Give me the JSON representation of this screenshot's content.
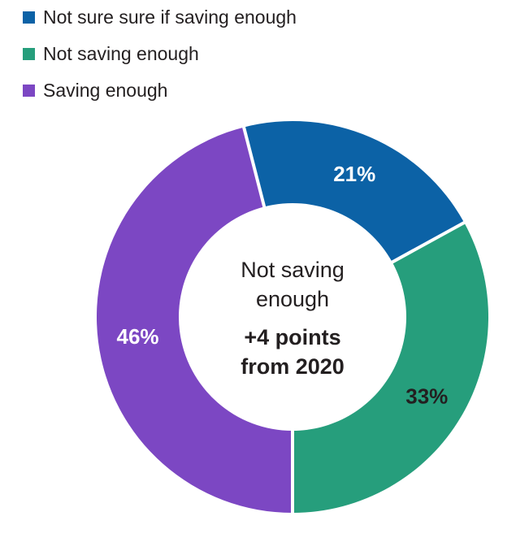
{
  "chart_data": {
    "type": "pie",
    "subtype": "donut",
    "slices": [
      {
        "label": "Not sure sure if saving enough",
        "value": 21,
        "display": "21%",
        "color": "#0C62A6",
        "label_color": "#FFFFFF"
      },
      {
        "label": "Not saving enough",
        "value": 33,
        "display": "33%",
        "color": "#269E7C",
        "label_color": "#231F20"
      },
      {
        "label": "Saving enough",
        "value": 46,
        "display": "46%",
        "color": "#7C47C3",
        "label_color": "#FFFFFF"
      }
    ],
    "center_label": {
      "primary": "Not saving enough",
      "secondary": "+4 points from 2020"
    },
    "layout": {
      "legend_position": "top-left",
      "start_angle_deg": -14.4,
      "clockwise": true,
      "separator_color": "#FFFFFF"
    }
  },
  "colors": {
    "background": "#FFFFFF",
    "text_dark": "#231F20"
  }
}
